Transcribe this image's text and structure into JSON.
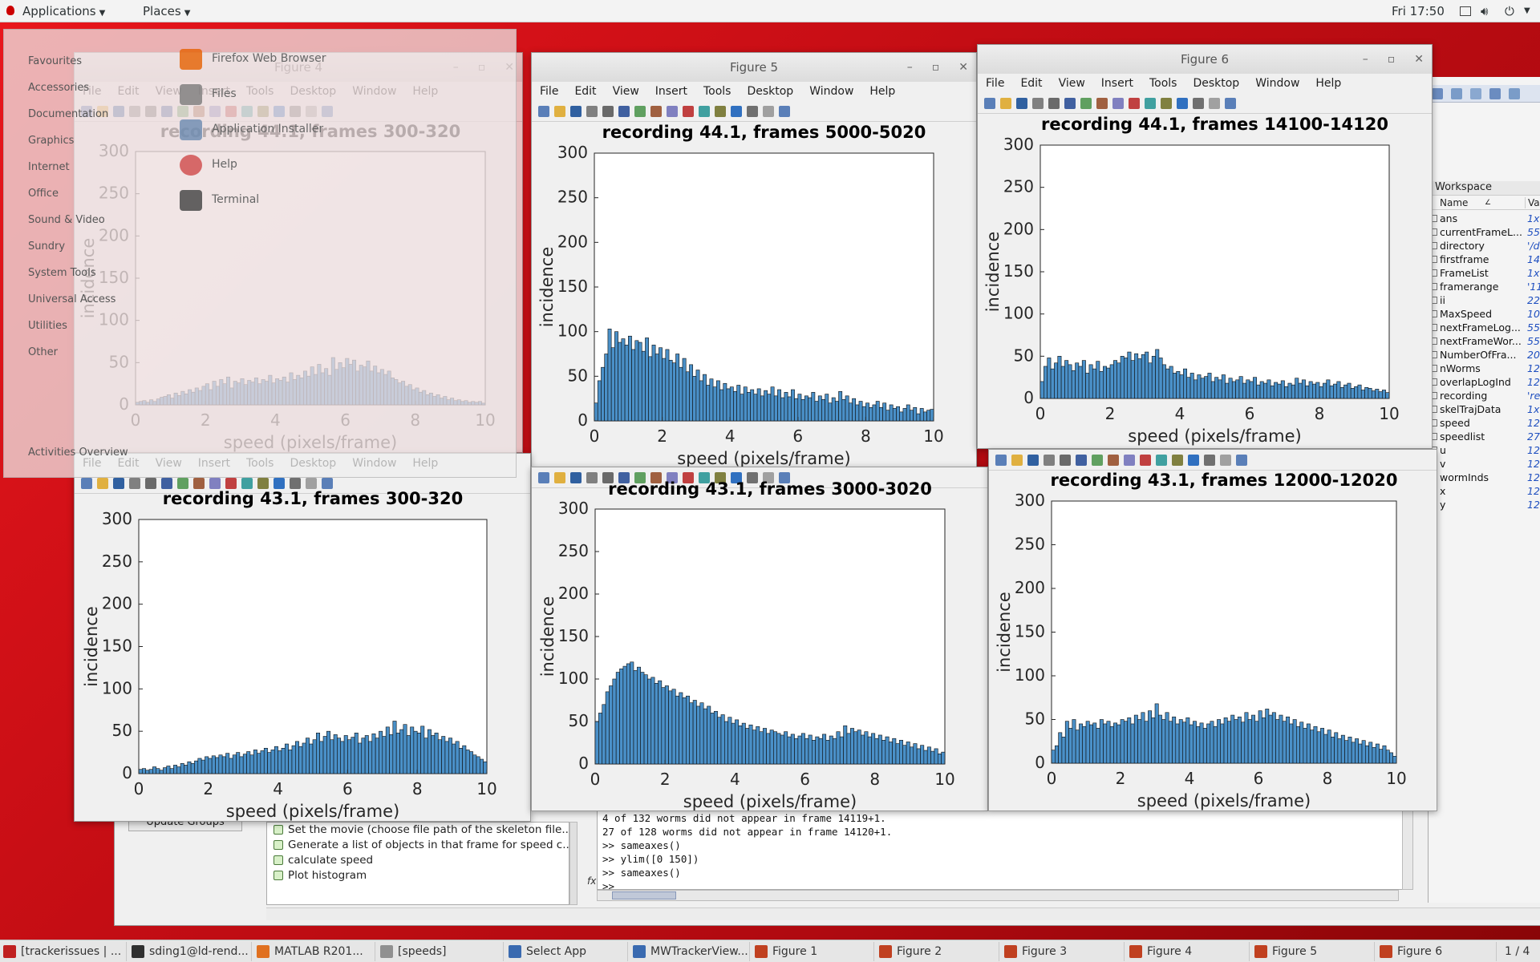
{
  "topbar": {
    "applications": "Applications",
    "places": "Places",
    "clock": "Fri 17:50"
  },
  "app_menu": {
    "categories": [
      "Favourites",
      "Accessories",
      "Documentation",
      "Graphics",
      "Internet",
      "Office",
      "Sound & Video",
      "Sundry",
      "System Tools",
      "Universal Access",
      "Utilities",
      "Other"
    ],
    "apps": [
      "Firefox Web Browser",
      "Files",
      "Application Installer",
      "Help",
      "Terminal"
    ],
    "activities": "Activities Overview"
  },
  "figure_menu": [
    "File",
    "Edit",
    "View",
    "Insert",
    "Tools",
    "Desktop",
    "Window",
    "Help"
  ],
  "figures": [
    {
      "window_title": "Figure 4",
      "title": "recording 44.1, frames 300-320"
    },
    {
      "window_title": "Figure 5",
      "title": "recording 44.1, frames 5000-5020"
    },
    {
      "window_title": "Figure 6",
      "title": "recording 44.1, frames 14100-14120"
    },
    {
      "window_title": "Figure 1",
      "title": "recording 43.1, frames 300-320"
    },
    {
      "window_title": "Figure 2",
      "title": "recording 43.1, frames 3000-3020"
    },
    {
      "window_title": "Figure 3",
      "title": "recording 43.1, frames 12000-12020"
    }
  ],
  "axes": {
    "xlabel": "speed (pixels/frame)",
    "ylabel": "incidence",
    "xticks": [
      "0",
      "2",
      "4",
      "6",
      "8",
      "10"
    ],
    "yticks": [
      "0",
      "50",
      "100",
      "150",
      "200",
      "250",
      "300"
    ]
  },
  "chart_data": [
    {
      "type": "bar",
      "title": "recording 44.1, frames 300-320",
      "xlabel": "speed (pixels/frame)",
      "ylabel": "incidence",
      "xlim": [
        0,
        10
      ],
      "ylim": [
        0,
        300
      ],
      "values": [
        3,
        4,
        5,
        3,
        6,
        4,
        7,
        9,
        10,
        12,
        8,
        14,
        11,
        16,
        13,
        18,
        15,
        20,
        17,
        22,
        25,
        18,
        28,
        22,
        30,
        25,
        33,
        20,
        28,
        26,
        31,
        24,
        29,
        27,
        32,
        25,
        30,
        28,
        35,
        26,
        31,
        29,
        33,
        27,
        38,
        30,
        35,
        32,
        40,
        34,
        45,
        36,
        48,
        38,
        43,
        35,
        56,
        42,
        50,
        44,
        55,
        48,
        53,
        40,
        47,
        45,
        52,
        40,
        46,
        38,
        42,
        36,
        40,
        32,
        30,
        26,
        28,
        22,
        24,
        18,
        20,
        15,
        17,
        12,
        14,
        10,
        12,
        8,
        10,
        6,
        8,
        5,
        6,
        4,
        5,
        3,
        4,
        3,
        4,
        2
      ],
      "bar_count": 100
    },
    {
      "type": "bar",
      "title": "recording 44.1, frames 5000-5020",
      "xlabel": "speed (pixels/frame)",
      "ylabel": "incidence",
      "xlim": [
        0,
        10
      ],
      "ylim": [
        0,
        300
      ],
      "values": [
        20,
        45,
        60,
        75,
        103,
        82,
        100,
        88,
        92,
        85,
        95,
        80,
        90,
        88,
        78,
        93,
        72,
        85,
        75,
        82,
        70,
        80,
        68,
        65,
        75,
        60,
        70,
        55,
        63,
        50,
        57,
        45,
        52,
        40,
        47,
        38,
        45,
        35,
        42,
        36,
        38,
        33,
        40,
        30,
        38,
        32,
        35,
        30,
        36,
        28,
        34,
        30,
        38,
        28,
        35,
        26,
        32,
        27,
        35,
        25,
        30,
        24,
        28,
        26,
        32,
        22,
        28,
        24,
        30,
        20,
        26,
        22,
        33,
        24,
        28,
        20,
        25,
        18,
        22,
        16,
        20,
        15,
        18,
        22,
        15,
        20,
        12,
        18,
        14,
        16,
        10,
        14,
        18,
        12,
        15,
        8,
        14,
        10,
        12,
        13
      ],
      "bar_count": 100
    },
    {
      "type": "bar",
      "title": "recording 44.1, frames 14100-14120",
      "xlabel": "speed (pixels/frame)",
      "ylabel": "incidence",
      "xlim": [
        0,
        10
      ],
      "ylim": [
        0,
        300
      ],
      "values": [
        20,
        38,
        48,
        35,
        42,
        50,
        38,
        45,
        40,
        33,
        42,
        38,
        45,
        30,
        40,
        35,
        44,
        32,
        38,
        36,
        40,
        45,
        42,
        50,
        48,
        55,
        45,
        53,
        47,
        52,
        55,
        42,
        50,
        58,
        48,
        40,
        35,
        38,
        30,
        32,
        28,
        35,
        25,
        30,
        22,
        28,
        24,
        26,
        30,
        20,
        25,
        22,
        28,
        18,
        24,
        20,
        22,
        26,
        18,
        22,
        20,
        25,
        16,
        20,
        18,
        22,
        15,
        19,
        17,
        21,
        14,
        18,
        16,
        24,
        18,
        22,
        15,
        20,
        17,
        19,
        14,
        18,
        22,
        15,
        17,
        20,
        13,
        16,
        18,
        12,
        14,
        16,
        10,
        13,
        12,
        9,
        11,
        8,
        10,
        7
      ],
      "bar_count": 100
    },
    {
      "type": "bar",
      "title": "recording 43.1, frames 300-320",
      "xlabel": "speed (pixels/frame)",
      "ylabel": "incidence",
      "xlim": [
        0,
        10
      ],
      "ylim": [
        0,
        300
      ],
      "values": [
        5,
        6,
        4,
        5,
        8,
        6,
        4,
        7,
        9,
        6,
        10,
        8,
        12,
        10,
        14,
        12,
        15,
        18,
        16,
        20,
        18,
        21,
        19,
        22,
        20,
        24,
        18,
        22,
        25,
        20,
        23,
        26,
        22,
        28,
        24,
        27,
        30,
        25,
        28,
        32,
        27,
        30,
        35,
        28,
        33,
        38,
        32,
        36,
        42,
        35,
        40,
        48,
        38,
        44,
        50,
        40,
        46,
        42,
        38,
        45,
        40,
        43,
        48,
        36,
        42,
        45,
        38,
        47,
        42,
        50,
        44,
        55,
        46,
        62,
        48,
        52,
        58,
        45,
        55,
        50,
        48,
        56,
        42,
        52,
        45,
        48,
        40,
        44,
        38,
        42,
        35,
        38,
        30,
        33,
        28,
        26,
        22,
        20,
        17,
        14
      ],
      "bar_count": 100
    },
    {
      "type": "bar",
      "title": "recording 43.1, frames 3000-3020",
      "xlabel": "speed (pixels/frame)",
      "ylabel": "incidence",
      "xlim": [
        0,
        10
      ],
      "ylim": [
        0,
        300
      ],
      "values": [
        50,
        60,
        70,
        85,
        92,
        100,
        108,
        112,
        115,
        118,
        120,
        110,
        114,
        108,
        105,
        100,
        102,
        95,
        98,
        90,
        92,
        86,
        88,
        80,
        84,
        78,
        80,
        72,
        75,
        68,
        72,
        65,
        68,
        60,
        62,
        55,
        58,
        50,
        55,
        48,
        52,
        45,
        48,
        42,
        46,
        40,
        44,
        38,
        42,
        36,
        40,
        38,
        36,
        34,
        38,
        32,
        35,
        30,
        33,
        36,
        30,
        34,
        28,
        32,
        30,
        35,
        28,
        33,
        30,
        38,
        32,
        45,
        36,
        42,
        38,
        40,
        34,
        38,
        32,
        36,
        30,
        34,
        28,
        32,
        26,
        30,
        24,
        28,
        22,
        26,
        20,
        24,
        18,
        22,
        16,
        20,
        15,
        18,
        12,
        14
      ],
      "bar_count": 100
    },
    {
      "type": "bar",
      "title": "recording 43.1, frames 12000-12020",
      "xlabel": "speed (pixels/frame)",
      "ylabel": "incidence",
      "xlim": [
        0,
        10
      ],
      "ylim": [
        0,
        300
      ],
      "values": [
        15,
        20,
        35,
        30,
        48,
        40,
        50,
        38,
        45,
        42,
        48,
        44,
        46,
        40,
        50,
        45,
        48,
        42,
        46,
        44,
        50,
        48,
        52,
        45,
        55,
        50,
        58,
        48,
        60,
        52,
        68,
        55,
        50,
        58,
        48,
        53,
        45,
        50,
        47,
        52,
        44,
        48,
        42,
        46,
        40,
        45,
        48,
        42,
        50,
        45,
        52,
        48,
        55,
        50,
        53,
        47,
        58,
        50,
        55,
        48,
        60,
        52,
        62,
        55,
        58,
        50,
        55,
        48,
        53,
        45,
        50,
        42,
        47,
        40,
        45,
        38,
        42,
        36,
        40,
        33,
        38,
        30,
        35,
        28,
        32,
        26,
        30,
        24,
        28,
        22,
        26,
        20,
        24,
        18,
        22,
        16,
        20,
        15,
        12,
        8
      ],
      "bar_count": 100
    }
  ],
  "command_window": {
    "lines": [
      "4 of 132 worms did not appear in frame 14119+1.",
      "27 of 128 worms did not appear in frame 14120+1.",
      ">> sameaxes()",
      ">> ylim([0 150])",
      ">> sameaxes()",
      ">>"
    ],
    "fx": "fx"
  },
  "tasks_panel": {
    "update_button": "Update Groups",
    "items": [
      "Set the movie (choose file path of the skeleton file...",
      "Generate a list of objects in that frame for speed c...",
      "calculate speed",
      "Plot histogram"
    ]
  },
  "workspace": {
    "title": "Workspace",
    "col_name": "Name",
    "col_value": "Va",
    "vars": [
      {
        "name": "ans",
        "value": "1x"
      },
      {
        "name": "currentFrameL...",
        "value": "55"
      },
      {
        "name": "directory",
        "value": "'/d"
      },
      {
        "name": "firstframe",
        "value": "14"
      },
      {
        "name": "FrameList",
        "value": "1x"
      },
      {
        "name": "framerange",
        "value": "'11"
      },
      {
        "name": "ii",
        "value": "22"
      },
      {
        "name": "MaxSpeed",
        "value": "10"
      },
      {
        "name": "nextFrameLog...",
        "value": "55"
      },
      {
        "name": "nextFrameWor...",
        "value": "55"
      },
      {
        "name": "NumberOfFra...",
        "value": "20"
      },
      {
        "name": "nWorms",
        "value": "12"
      },
      {
        "name": "overlapLogInd",
        "value": "12"
      },
      {
        "name": "recording",
        "value": "'re"
      },
      {
        "name": "skelTrajData",
        "value": "1x"
      },
      {
        "name": "speed",
        "value": "12"
      },
      {
        "name": "speedlist",
        "value": "27"
      },
      {
        "name": "u",
        "value": "12"
      },
      {
        "name": "v",
        "value": "12"
      },
      {
        "name": "wormInds",
        "value": "12"
      },
      {
        "name": "x",
        "value": "12"
      },
      {
        "name": "y",
        "value": "12"
      }
    ]
  },
  "taskbar": {
    "items": [
      "[trackerissues | ...",
      "sding1@ld-rend...",
      "MATLAB R201...",
      "[speeds]",
      "Select App",
      "MWTrackerView...",
      "Figure 1",
      "Figure 2",
      "Figure 3",
      "Figure 4",
      "Figure 5",
      "Figure 6"
    ],
    "pager": "1 / 4"
  }
}
